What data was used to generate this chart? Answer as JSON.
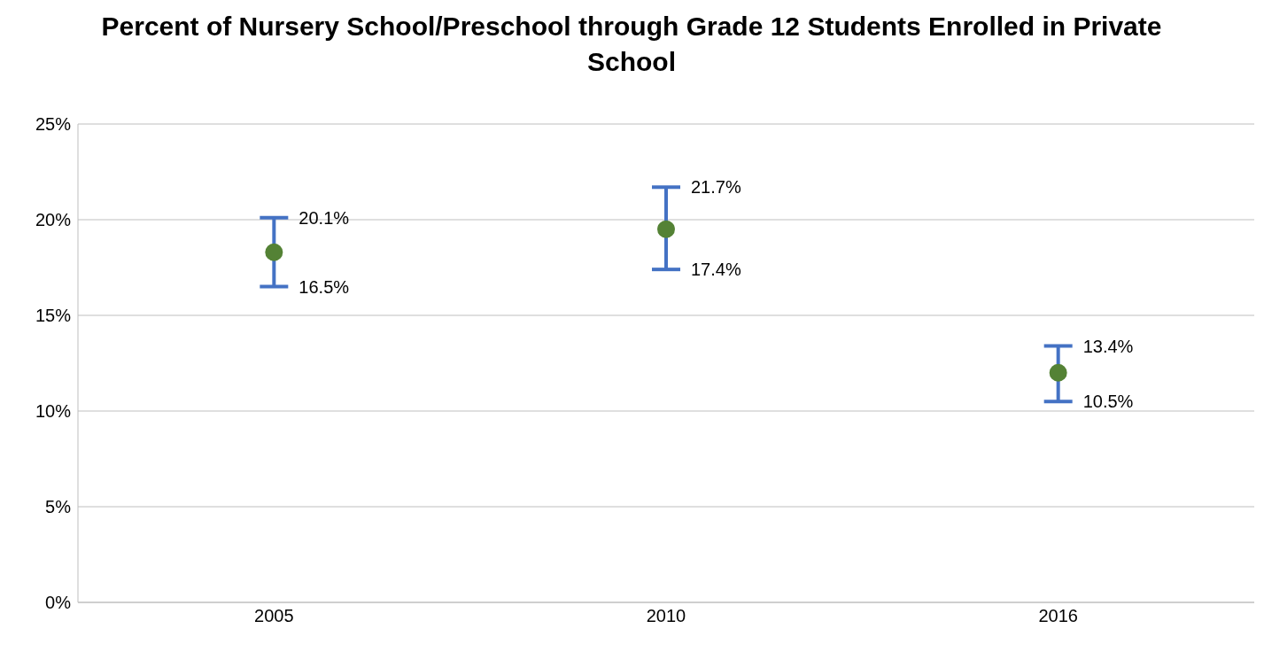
{
  "chart_data": {
    "type": "scatter",
    "title": "Percent of Nursery School/Preschool through Grade 12 Students Enrolled in Private School",
    "categories": [
      "2005",
      "2010",
      "2016"
    ],
    "series": [
      {
        "color": "#548235",
        "values": [
          18.3,
          19.5,
          12.0
        ],
        "errors": [
          [
            16.5,
            20.1
          ],
          [
            17.4,
            21.7
          ],
          [
            10.5,
            13.4
          ]
        ]
      }
    ],
    "ylim": [
      0,
      25
    ],
    "yticks": [
      {
        "value": 0,
        "label": "0%"
      },
      {
        "value": 5,
        "label": "5%"
      },
      {
        "value": 10,
        "label": "10%"
      },
      {
        "value": 15,
        "label": "15%"
      },
      {
        "value": 20,
        "label": "20%"
      },
      {
        "value": 25,
        "label": "25%"
      }
    ],
    "grid": "y",
    "marker": "circle",
    "annotations": [
      {
        "text": "20.1%",
        "x": "2005",
        "y": 20.1
      },
      {
        "text": "16.5%",
        "x": "2005",
        "y": 16.5
      },
      {
        "text": "21.7%",
        "x": "2010",
        "y": 21.7
      },
      {
        "text": "17.4%",
        "x": "2010",
        "y": 17.4
      },
      {
        "text": "13.4%",
        "x": "2016",
        "y": 13.4
      },
      {
        "text": "10.5%",
        "x": "2016",
        "y": 10.5
      }
    ]
  }
}
